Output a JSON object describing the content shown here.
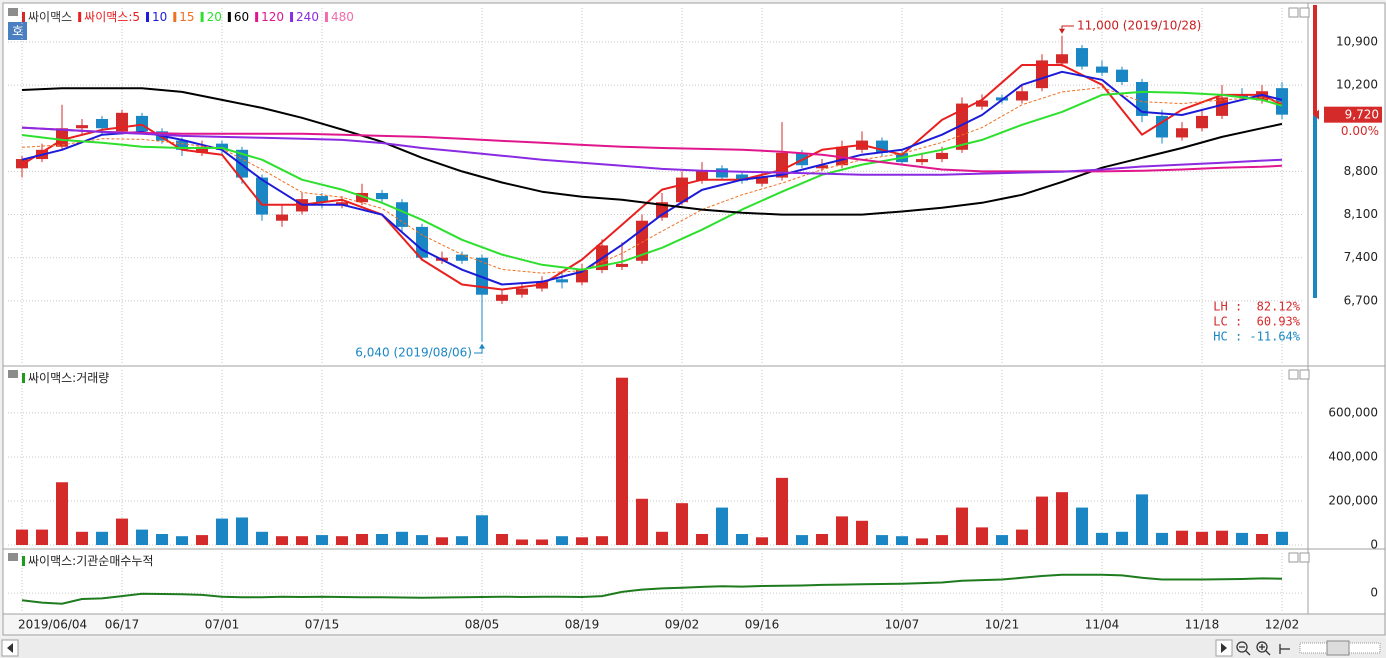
{
  "chart_data": [
    {
      "type": "candlestick",
      "name": "싸이맥스",
      "quote_button": "호",
      "up_color": "#d42a2a",
      "down_color": "#1a87c4",
      "open": [
        8850,
        9000,
        9200,
        9500,
        9650,
        9450,
        9700,
        9450,
        9300,
        9100,
        9250,
        9150,
        8700,
        8000,
        8150,
        8400,
        8250,
        8300,
        8450,
        8300,
        7900,
        7350,
        7450,
        7400,
        6700,
        6800,
        6900,
        7050,
        7000,
        7200,
        7250,
        7350,
        8050,
        8300,
        8650,
        8850,
        8750,
        8600,
        8700,
        9100,
        8850,
        8900,
        9150,
        9300,
        9100,
        8950,
        9000,
        9150,
        9850,
        10000,
        9950,
        10150,
        10550,
        10800,
        10500,
        10450,
        10250,
        9700,
        9350,
        9500,
        9700,
        10050,
        9950,
        10150
      ],
      "high": [
        9050,
        9250,
        9880,
        9650,
        9700,
        9800,
        9750,
        9500,
        9350,
        9300,
        9300,
        9200,
        8750,
        8250,
        8450,
        8450,
        8400,
        8600,
        8500,
        8350,
        7950,
        7500,
        7500,
        7450,
        6900,
        7000,
        7100,
        7150,
        7300,
        7700,
        7650,
        8100,
        8450,
        8800,
        8950,
        8900,
        8800,
        8800,
        9600,
        9150,
        9000,
        9300,
        9450,
        9350,
        9150,
        9100,
        9200,
        10000,
        10050,
        10050,
        10200,
        10700,
        11000,
        10850,
        10600,
        10500,
        10300,
        9800,
        9600,
        9800,
        10200,
        10150,
        10200,
        10250
      ],
      "low": [
        8700,
        8950,
        9150,
        9400,
        9400,
        9400,
        9400,
        9250,
        9050,
        9050,
        9050,
        8600,
        8000,
        7900,
        8100,
        8200,
        8200,
        8250,
        8300,
        7800,
        7350,
        7300,
        7300,
        6040,
        6650,
        6750,
        6850,
        6900,
        6950,
        7150,
        7200,
        7300,
        8000,
        8250,
        8600,
        8650,
        8600,
        8550,
        8650,
        8850,
        8800,
        8850,
        9100,
        9050,
        8900,
        8900,
        8950,
        9100,
        9800,
        9900,
        9900,
        10100,
        10500,
        10450,
        10350,
        10200,
        9600,
        9250,
        9300,
        9450,
        9650,
        9950,
        9900,
        9650
      ],
      "close": [
        9000,
        9150,
        9500,
        9550,
        9500,
        9750,
        9450,
        9300,
        9150,
        9200,
        9150,
        8700,
        8100,
        8100,
        8350,
        8300,
        8300,
        8450,
        8350,
        7900,
        7400,
        7400,
        7350,
        6800,
        6800,
        6900,
        7000,
        7000,
        7200,
        7600,
        7300,
        8000,
        8300,
        8700,
        8800,
        8700,
        8650,
        8700,
        9100,
        8900,
        8900,
        9200,
        9300,
        9100,
        8950,
        9000,
        9100,
        9900,
        9950,
        9950,
        10100,
        10600,
        10700,
        10500,
        10400,
        10250,
        9700,
        9350,
        9500,
        9700,
        10000,
        10000,
        10100,
        9720
      ],
      "ma_x": [
        0,
        2,
        4,
        6,
        8,
        10,
        12,
        14,
        16,
        18,
        20,
        22,
        24,
        26,
        28,
        30,
        32,
        34,
        36,
        38,
        40,
        42,
        44,
        46,
        48,
        50,
        52,
        54,
        56,
        58,
        60,
        62,
        63
      ],
      "series": [
        {
          "name": "싸이맥스:5",
          "color": "#e8201f",
          "values": [
            8910,
            9310,
            9475,
            9555,
            9150,
            9070,
            8260,
            8260,
            8340,
            8100,
            7370,
            6965,
            6885,
            6965,
            7370,
            7935,
            8505,
            8665,
            8665,
            8825,
            9150,
            9230,
            9070,
            9635,
            9960,
            10525,
            10525,
            10205,
            9395,
            9800,
            10040,
            10040,
            9880
          ]
        },
        {
          "name": "10",
          "color": "#1c1cd8",
          "values": [
            8990,
            9150,
            9395,
            9440,
            9310,
            9150,
            8665,
            8260,
            8260,
            8100,
            7530,
            7205,
            6965,
            7010,
            7175,
            7610,
            8100,
            8500,
            8665,
            8745,
            8910,
            9070,
            9150,
            9395,
            9715,
            10205,
            10415,
            10285,
            9765,
            9715,
            9880,
            10040,
            9960
          ]
        },
        {
          "name": "15",
          "color": "#f07020",
          "dashed": true,
          "values": [
            9190,
            9230,
            9330,
            9320,
            9250,
            9170,
            8830,
            8460,
            8380,
            8200,
            7770,
            7450,
            7210,
            7150,
            7190,
            7470,
            7830,
            8180,
            8420,
            8610,
            8830,
            8990,
            9090,
            9270,
            9510,
            9880,
            10090,
            10160,
            9930,
            9900,
            9960,
            10000,
            9910
          ]
        },
        {
          "name": "20",
          "color": "#2ee02e",
          "values": [
            9390,
            9310,
            9265,
            9200,
            9180,
            9180,
            8990,
            8665,
            8505,
            8290,
            8015,
            7690,
            7450,
            7285,
            7205,
            7335,
            7560,
            7855,
            8180,
            8470,
            8745,
            8910,
            9020,
            9150,
            9310,
            9555,
            9765,
            10040,
            10090,
            10075,
            10040,
            9960,
            9865
          ]
        },
        {
          "name": "60",
          "color": "#000000",
          "values": [
            10120,
            10150,
            10150,
            10150,
            10090,
            9960,
            9830,
            9670,
            9480,
            9280,
            9020,
            8800,
            8620,
            8470,
            8390,
            8340,
            8260,
            8180,
            8130,
            8100,
            8100,
            8100,
            8150,
            8210,
            8290,
            8420,
            8630,
            8860,
            9020,
            9180,
            9360,
            9500,
            9570
          ]
        },
        {
          "name": "120",
          "color": "#e0168c",
          "values": [
            9510,
            9475,
            9440,
            9425,
            9410,
            9410,
            9410,
            9410,
            9395,
            9375,
            9360,
            9330,
            9295,
            9265,
            9230,
            9200,
            9180,
            9165,
            9150,
            9120,
            9070,
            8990,
            8910,
            8830,
            8800,
            8800,
            8800,
            8800,
            8810,
            8830,
            8860,
            8875,
            8890
          ]
        },
        {
          "name": "240",
          "color": "#8a2be2",
          "values": [
            9510,
            9475,
            9440,
            9410,
            9375,
            9360,
            9345,
            9330,
            9310,
            9260,
            9180,
            9120,
            9055,
            8990,
            8940,
            8890,
            8840,
            8810,
            8795,
            8780,
            8765,
            8745,
            8745,
            8745,
            8765,
            8780,
            8795,
            8830,
            8880,
            8910,
            8940,
            8975,
            8990
          ]
        },
        {
          "name": "480",
          "color": "#f06cab",
          "values": [
            null,
            null,
            null,
            null,
            null,
            null,
            null,
            null,
            null,
            null,
            null,
            null,
            null,
            null,
            null,
            null,
            null,
            null,
            null,
            null,
            null,
            null,
            null,
            null,
            null,
            null,
            null,
            null,
            null,
            null,
            null,
            null,
            null
          ]
        }
      ],
      "ylim": [
        5660,
        11450
      ],
      "yticks": [
        {
          "value": 6700,
          "label": "6,700"
        },
        {
          "value": 7400,
          "label": "7,400"
        },
        {
          "value": 8100,
          "label": "8,100"
        },
        {
          "value": 8800,
          "label": "8,800"
        },
        {
          "value": 10200,
          "label": "10,200"
        },
        {
          "value": 10900,
          "label": "10,900"
        }
      ],
      "grid": true,
      "high_note": {
        "value": 11000,
        "label": "11,000 (2019/10/28)"
      },
      "low_note": {
        "value": 6040,
        "label": "6,040 (2019/08/06)"
      },
      "price_tag": {
        "value": 9720,
        "label": "9,720"
      },
      "change": "0.00%",
      "stats": [
        "LH :  82.12%",
        "LC :  60.93%",
        "HC : -11.64%"
      ]
    },
    {
      "type": "bar",
      "title": "싸이맥스:거래량",
      "up_color": "#d42a2a",
      "down_color": "#1a87c4",
      "values": [
        70000,
        70000,
        285000,
        60000,
        60000,
        120000,
        70000,
        50000,
        40000,
        45000,
        120000,
        125000,
        60000,
        40000,
        40000,
        45000,
        40000,
        50000,
        50000,
        60000,
        45000,
        35000,
        40000,
        135000,
        50000,
        25000,
        25000,
        40000,
        35000,
        40000,
        760000,
        210000,
        60000,
        190000,
        50000,
        170000,
        50000,
        35000,
        305000,
        45000,
        50000,
        130000,
        110000,
        45000,
        40000,
        30000,
        45000,
        170000,
        80000,
        45000,
        70000,
        220000,
        240000,
        170000,
        55000,
        60000,
        230000,
        55000,
        65000,
        60000,
        65000,
        55000,
        50000,
        60000
      ],
      "ylim": [
        0,
        795000
      ],
      "yticks": [
        0,
        {
          "value": 200000,
          "label": "200,000"
        },
        {
          "value": 400000,
          "label": "400,000"
        },
        {
          "value": 600000,
          "label": "600,000"
        }
      ],
      "grid": true
    },
    {
      "type": "line",
      "title": "싸이맥스:기관순매수누적",
      "color": "#1e7b1e",
      "categories": [
        "2019/06/04",
        null,
        null,
        null,
        null,
        "06/17",
        null,
        null,
        null,
        null,
        "07/01",
        null,
        null,
        null,
        null,
        "07/15",
        null,
        null,
        null,
        null,
        null,
        null,
        null,
        "08/05",
        null,
        null,
        null,
        null,
        "08/19",
        null,
        null,
        null,
        null,
        "09/02",
        null,
        null,
        null,
        "09/16",
        null,
        null,
        null,
        null,
        null,
        null,
        "10/07",
        null,
        null,
        null,
        null,
        "10/21",
        null,
        null,
        null,
        null,
        "11/04",
        null,
        null,
        null,
        null,
        "11/18",
        null,
        null,
        null,
        "12/02"
      ],
      "values": [
        -12000,
        -16000,
        -18000,
        -10000,
        -9000,
        -5000,
        -1000,
        -1500,
        -2000,
        -3000,
        -6000,
        -7000,
        -7000,
        -6000,
        -6500,
        -6000,
        -6500,
        -7000,
        -7000,
        -7500,
        -8000,
        -7500,
        -7000,
        -6500,
        -6000,
        -6500,
        -6000,
        -6000,
        -6500,
        -5000,
        2000,
        6000,
        8000,
        9000,
        10500,
        11500,
        11000,
        12000,
        12500,
        13000,
        14000,
        14500,
        15000,
        15500,
        16000,
        17000,
        18000,
        21000,
        22000,
        23000,
        26000,
        29000,
        31000,
        31000,
        31000,
        30000,
        26000,
        23000,
        23000,
        23000,
        23500,
        24000,
        25000,
        24500
      ],
      "ylim": [
        -32000,
        68000
      ],
      "yticks": [
        0
      ],
      "grid": true
    }
  ]
}
